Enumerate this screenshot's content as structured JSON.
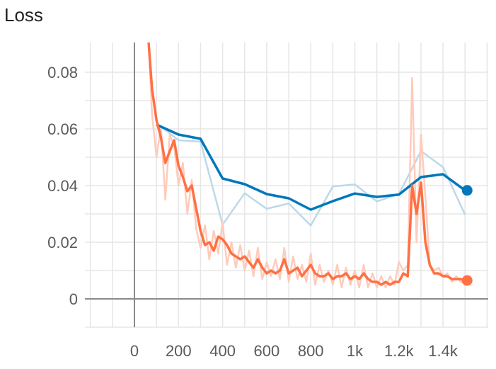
{
  "chart_data": {
    "type": "line",
    "title": "Loss",
    "xlabel": "",
    "ylabel": "",
    "xlim": [
      -200,
      1600
    ],
    "ylim": [
      -0.01,
      0.09
    ],
    "grid": true,
    "x_ticks": [
      {
        "value": 0,
        "label": "0"
      },
      {
        "value": 200,
        "label": "200"
      },
      {
        "value": 400,
        "label": "400"
      },
      {
        "value": 600,
        "label": "600"
      },
      {
        "value": 800,
        "label": "800"
      },
      {
        "value": 1000,
        "label": "1k"
      },
      {
        "value": 1200,
        "label": "1.2k"
      },
      {
        "value": 1400,
        "label": "1.4k"
      }
    ],
    "y_ticks": [
      {
        "value": 0,
        "label": "0"
      },
      {
        "value": 0.02,
        "label": "0.02"
      },
      {
        "value": 0.04,
        "label": "0.04"
      },
      {
        "value": 0.06,
        "label": "0.06"
      },
      {
        "value": 0.08,
        "label": "0.08"
      }
    ],
    "series": [
      {
        "color": "#0077bb",
        "raw_color": "#bcd9ea",
        "x": [
          100,
          200,
          300,
          400,
          500,
          600,
          700,
          800,
          900,
          1000,
          1100,
          1200,
          1300,
          1400,
          1500
        ],
        "smoothed": [
          0.0615,
          0.058,
          0.0565,
          0.0425,
          0.0405,
          0.037,
          0.0355,
          0.0315,
          0.0345,
          0.0372,
          0.036,
          0.0368,
          0.043,
          0.044,
          0.0383
        ],
        "raw": [
          0.062,
          0.056,
          0.0555,
          0.0262,
          0.0373,
          0.0318,
          0.0337,
          0.0259,
          0.0397,
          0.0404,
          0.0344,
          0.037,
          0.0522,
          0.0465,
          0.0297
        ]
      },
      {
        "color": "#ff7043",
        "raw_color": "#ffcbbb",
        "x": [
          60,
          80,
          100,
          120,
          140,
          160,
          180,
          200,
          220,
          240,
          260,
          280,
          300,
          320,
          340,
          360,
          380,
          400,
          420,
          440,
          460,
          480,
          500,
          520,
          540,
          560,
          580,
          600,
          620,
          640,
          660,
          680,
          700,
          720,
          740,
          760,
          780,
          800,
          820,
          840,
          860,
          880,
          900,
          920,
          940,
          960,
          980,
          1000,
          1020,
          1040,
          1060,
          1080,
          1100,
          1120,
          1140,
          1160,
          1180,
          1200,
          1220,
          1240,
          1260,
          1280,
          1300,
          1320,
          1340,
          1360,
          1380,
          1400,
          1420,
          1440,
          1460,
          1480,
          1500
        ],
        "smoothed": [
          0.095,
          0.074,
          0.063,
          0.057,
          0.048,
          0.052,
          0.056,
          0.047,
          0.043,
          0.038,
          0.04,
          0.032,
          0.024,
          0.019,
          0.02,
          0.017,
          0.022,
          0.021,
          0.019,
          0.016,
          0.015,
          0.014,
          0.015,
          0.013,
          0.011,
          0.014,
          0.011,
          0.009,
          0.01,
          0.009,
          0.01,
          0.014,
          0.009,
          0.01,
          0.011,
          0.008,
          0.01,
          0.012,
          0.009,
          0.008,
          0.008,
          0.009,
          0.007,
          0.008,
          0.008,
          0.009,
          0.007,
          0.008,
          0.007,
          0.009,
          0.007,
          0.006,
          0.006,
          0.005,
          0.006,
          0.005,
          0.006,
          0.006,
          0.009,
          0.008,
          0.04,
          0.03,
          0.041,
          0.02,
          0.012,
          0.009,
          0.009,
          0.008,
          0.008,
          0.007,
          0.007,
          0.007,
          0.0065
        ],
        "raw": [
          0.098,
          0.065,
          0.05,
          0.061,
          0.035,
          0.058,
          0.054,
          0.04,
          0.048,
          0.03,
          0.042,
          0.025,
          0.018,
          0.026,
          0.014,
          0.024,
          0.016,
          0.027,
          0.012,
          0.02,
          0.011,
          0.019,
          0.01,
          0.017,
          0.008,
          0.018,
          0.007,
          0.013,
          0.008,
          0.014,
          0.007,
          0.018,
          0.006,
          0.015,
          0.007,
          0.012,
          0.006,
          0.016,
          0.005,
          0.012,
          0.006,
          0.01,
          0.005,
          0.012,
          0.004,
          0.011,
          0.005,
          0.01,
          0.004,
          0.012,
          0.004,
          0.009,
          0.004,
          0.008,
          0.004,
          0.008,
          0.005,
          0.013,
          0.01,
          0.012,
          0.078,
          0.02,
          0.058,
          0.036,
          0.012,
          0.01,
          0.011,
          0.008,
          0.009,
          0.006,
          0.008,
          0.006,
          0.006
        ]
      }
    ]
  }
}
